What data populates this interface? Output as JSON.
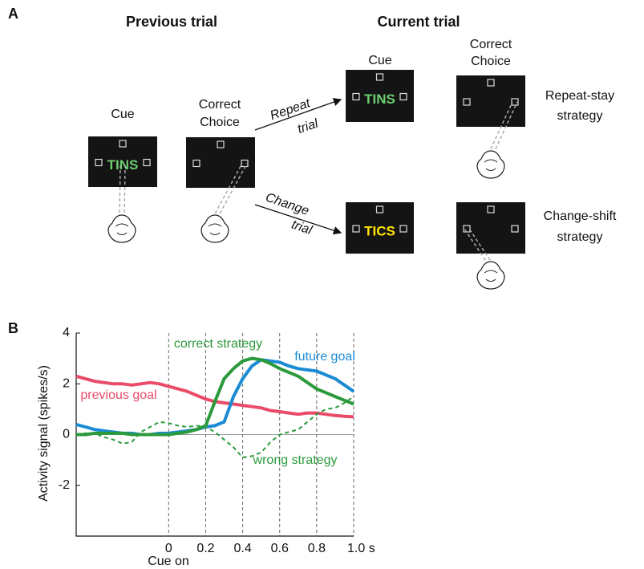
{
  "panel_a": {
    "letter": "A",
    "previous_trial": {
      "title": "Previous trial",
      "cue": "Cue",
      "cue_word": "TINS",
      "choice": [
        "Correct",
        "Choice"
      ]
    },
    "current_trial": {
      "title": "Current trial",
      "cue": "Cue",
      "choice": [
        "Correct",
        "Choice"
      ],
      "repeat": {
        "arrow": [
          "Repeat",
          "trial"
        ],
        "cue_word": "TINS",
        "strategy": [
          "Repeat-stay",
          "strategy"
        ]
      },
      "change": {
        "arrow": [
          "Change",
          "trial"
        ],
        "cue_word": "TICS",
        "strategy": [
          "Change-shift",
          "strategy"
        ]
      }
    }
  },
  "chart_data": {
    "type": "line",
    "panel": "B",
    "ylabel": "Activity signal (spikes/s)",
    "annotation": "Cue on",
    "x": [
      -0.5,
      -0.45,
      -0.4,
      -0.35,
      -0.3,
      -0.25,
      -0.2,
      -0.15,
      -0.1,
      -0.05,
      0,
      0.05,
      0.1,
      0.15,
      0.2,
      0.25,
      0.3,
      0.35,
      0.4,
      0.45,
      0.5,
      0.55,
      0.6,
      0.65,
      0.7,
      0.75,
      0.8,
      0.85,
      0.9,
      0.95,
      1.0
    ],
    "xlim": [
      -0.5,
      1.0
    ],
    "xticks": [
      0,
      0.2,
      0.4,
      0.6,
      0.8,
      {
        "value": 1,
        "label": "1.0 s"
      }
    ],
    "ylim": [
      -4,
      4
    ],
    "yticks": [
      -2,
      0,
      2,
      4
    ],
    "grid": true,
    "series": [
      {
        "name": "previous goal",
        "color": "#e94b68",
        "dash": false,
        "values": [
          2.3,
          2.2,
          2.1,
          2.05,
          2.0,
          2.0,
          1.95,
          2.0,
          2.05,
          2.0,
          1.9,
          1.8,
          1.7,
          1.55,
          1.4,
          1.3,
          1.25,
          1.2,
          1.15,
          1.1,
          1.05,
          0.95,
          0.9,
          0.85,
          0.8,
          0.85,
          0.85,
          0.8,
          0.75,
          0.72,
          0.7
        ]
      },
      {
        "name": "future goal",
        "color": "#1b8bd3",
        "dash": false,
        "values": [
          0.4,
          0.3,
          0.2,
          0.15,
          0.1,
          0.05,
          0.05,
          0.0,
          0.0,
          0.05,
          0.05,
          0.1,
          0.15,
          0.2,
          0.3,
          0.35,
          0.5,
          1.5,
          2.2,
          2.7,
          2.95,
          2.9,
          2.85,
          2.7,
          2.6,
          2.55,
          2.5,
          2.35,
          2.2,
          1.95,
          1.7
        ]
      },
      {
        "name": "correct strategy",
        "color": "#2b9a3c",
        "dash": false,
        "values": [
          0,
          0,
          0.05,
          0.05,
          0.05,
          0.05,
          0.0,
          0.0,
          0.0,
          0.0,
          0.0,
          0.05,
          0.1,
          0.2,
          0.35,
          1.3,
          2.2,
          2.6,
          2.9,
          3.0,
          2.95,
          2.8,
          2.6,
          2.45,
          2.3,
          2.05,
          1.8,
          1.65,
          1.5,
          1.35,
          1.2
        ]
      },
      {
        "name": "wrong strategy",
        "color": "#2b9a3c",
        "dash": true,
        "values": [
          0,
          0.05,
          0.05,
          -0.1,
          -0.2,
          -0.35,
          -0.3,
          0.1,
          0.3,
          0.5,
          0.45,
          0.35,
          0.3,
          0.35,
          0.3,
          0.1,
          -0.2,
          -0.5,
          -0.9,
          -0.85,
          -0.7,
          -0.3,
          0.0,
          0.1,
          0.2,
          0.5,
          0.8,
          1.0,
          1.05,
          1.25,
          1.5
        ]
      }
    ]
  }
}
